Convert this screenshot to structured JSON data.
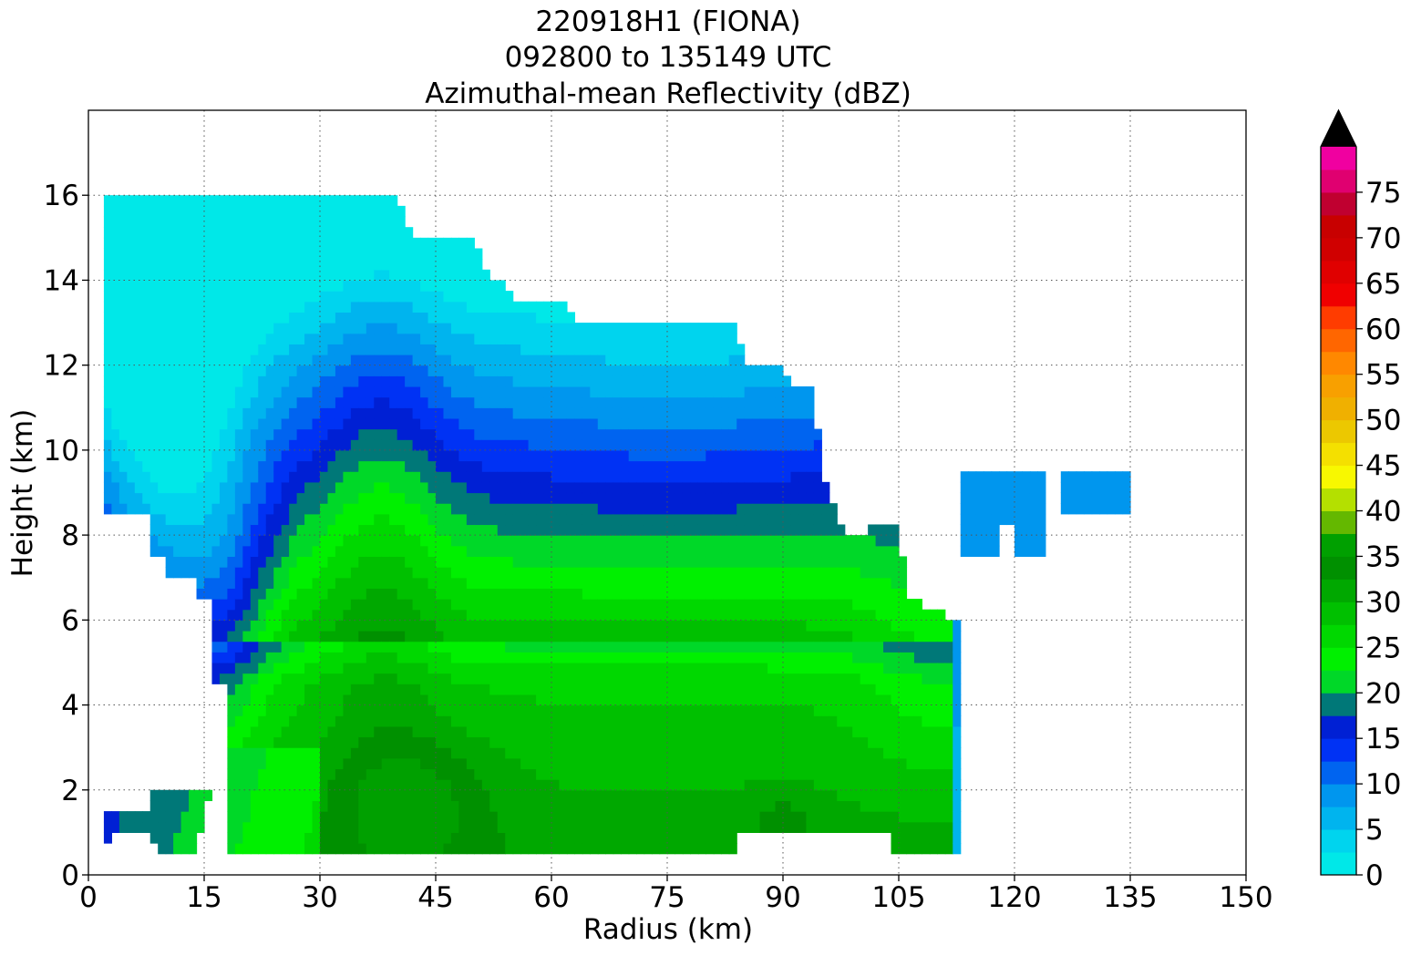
{
  "chart_data": {
    "type": "heatmap",
    "title_lines": [
      "220918H1 (FIONA)",
      "092800 to 135149 UTC",
      "Azimuthal-mean Reflectivity (dBZ)"
    ],
    "xlabel": "Radius (km)",
    "ylabel": "Height (km)",
    "xlim": [
      0,
      150
    ],
    "ylim": [
      0,
      18
    ],
    "xticks": [
      0,
      15,
      30,
      45,
      60,
      75,
      90,
      105,
      120,
      135,
      150
    ],
    "yticks": [
      0,
      2,
      4,
      6,
      8,
      10,
      12,
      14,
      16
    ],
    "grid": true,
    "colorbar": {
      "levels_step": 2.5,
      "range": [
        0,
        80
      ],
      "extend": "max",
      "tick_labels": [
        0,
        5,
        10,
        15,
        20,
        25,
        30,
        35,
        40,
        45,
        50,
        55,
        60,
        65,
        70,
        75
      ],
      "colors": [
        "#00e8e8",
        "#00d4ee",
        "#00b4ee",
        "#0096ee",
        "#0064f0",
        "#0032f4",
        "#0020d4",
        "#007878",
        "#00d828",
        "#00f000",
        "#00d800",
        "#00c000",
        "#00a800",
        "#009000",
        "#00a000",
        "#64b800",
        "#b4e000",
        "#f8f800",
        "#f4e000",
        "#ecc800",
        "#f0b000",
        "#f8a000",
        "#ff8800",
        "#ff6600",
        "#ff3c00",
        "#f00000",
        "#e00000",
        "#d00000",
        "#c80000",
        "#c00030",
        "#e00070",
        "#f000a0",
        "#f000d8",
        "#d838e0",
        "#a850d0",
        "#7840a0",
        "#402050"
      ],
      "extend_color": "#000000"
    },
    "field": {
      "peak_dbz": 36,
      "peak_location_km": {
        "radius": 40,
        "height": 1
      },
      "max_height_km": 16,
      "max_radius_km": 135
    }
  }
}
